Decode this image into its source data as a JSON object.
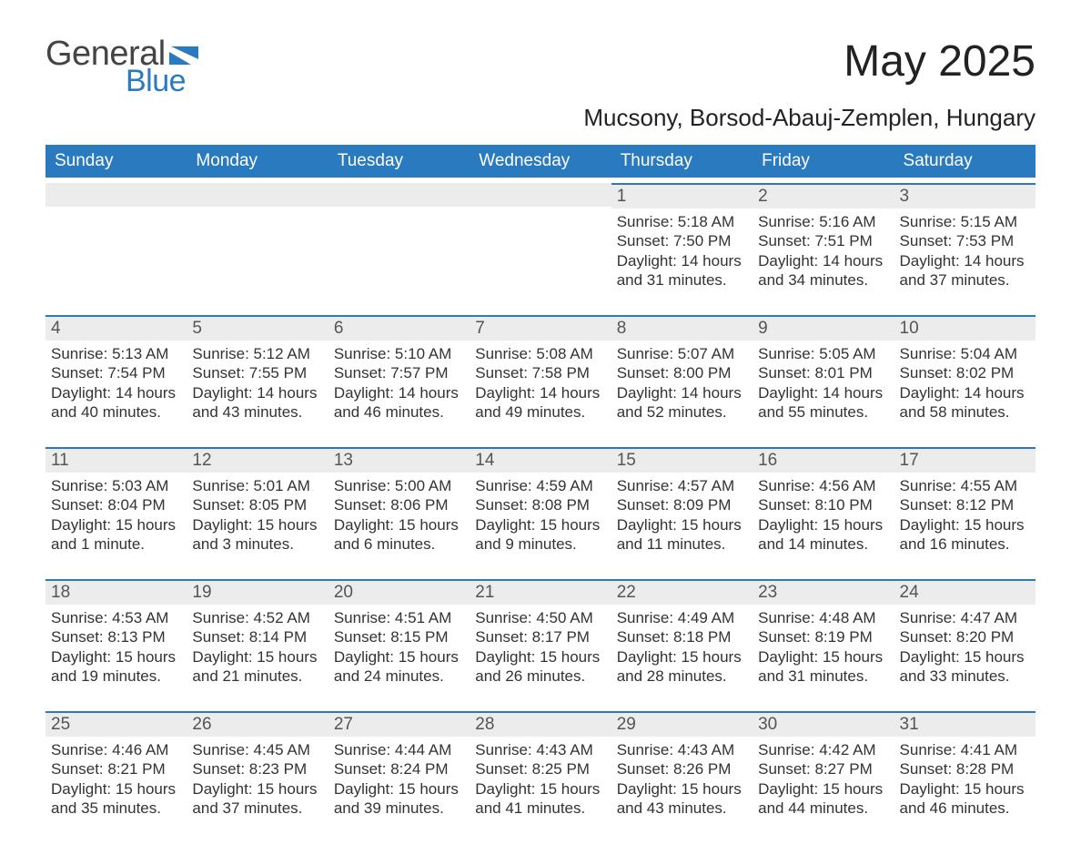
{
  "brand": {
    "text1": "General",
    "text2": "Blue",
    "color1": "#444444",
    "color2": "#2a7ac0"
  },
  "title": "May 2025",
  "location": "Mucsony, Borsod-Abauj-Zemplen, Hungary",
  "colors": {
    "header_bg": "#2a7ac0",
    "header_text": "#ffffff",
    "daybar_bg": "#ececec",
    "daybar_border": "#2a7ac0",
    "body_text": "#333333",
    "page_bg": "#ffffff"
  },
  "layout": {
    "weekday_fontsize": 19,
    "daynum_fontsize": 19,
    "body_fontsize": 17,
    "title_fontsize": 48,
    "location_fontsize": 26
  },
  "weekdays": [
    "Sunday",
    "Monday",
    "Tuesday",
    "Wednesday",
    "Thursday",
    "Friday",
    "Saturday"
  ],
  "weeks": [
    [
      null,
      null,
      null,
      null,
      {
        "n": "1",
        "sr": "5:18 AM",
        "ss": "7:50 PM",
        "dl": "14 hours and 31 minutes."
      },
      {
        "n": "2",
        "sr": "5:16 AM",
        "ss": "7:51 PM",
        "dl": "14 hours and 34 minutes."
      },
      {
        "n": "3",
        "sr": "5:15 AM",
        "ss": "7:53 PM",
        "dl": "14 hours and 37 minutes."
      }
    ],
    [
      {
        "n": "4",
        "sr": "5:13 AM",
        "ss": "7:54 PM",
        "dl": "14 hours and 40 minutes."
      },
      {
        "n": "5",
        "sr": "5:12 AM",
        "ss": "7:55 PM",
        "dl": "14 hours and 43 minutes."
      },
      {
        "n": "6",
        "sr": "5:10 AM",
        "ss": "7:57 PM",
        "dl": "14 hours and 46 minutes."
      },
      {
        "n": "7",
        "sr": "5:08 AM",
        "ss": "7:58 PM",
        "dl": "14 hours and 49 minutes."
      },
      {
        "n": "8",
        "sr": "5:07 AM",
        "ss": "8:00 PM",
        "dl": "14 hours and 52 minutes."
      },
      {
        "n": "9",
        "sr": "5:05 AM",
        "ss": "8:01 PM",
        "dl": "14 hours and 55 minutes."
      },
      {
        "n": "10",
        "sr": "5:04 AM",
        "ss": "8:02 PM",
        "dl": "14 hours and 58 minutes."
      }
    ],
    [
      {
        "n": "11",
        "sr": "5:03 AM",
        "ss": "8:04 PM",
        "dl": "15 hours and 1 minute."
      },
      {
        "n": "12",
        "sr": "5:01 AM",
        "ss": "8:05 PM",
        "dl": "15 hours and 3 minutes."
      },
      {
        "n": "13",
        "sr": "5:00 AM",
        "ss": "8:06 PM",
        "dl": "15 hours and 6 minutes."
      },
      {
        "n": "14",
        "sr": "4:59 AM",
        "ss": "8:08 PM",
        "dl": "15 hours and 9 minutes."
      },
      {
        "n": "15",
        "sr": "4:57 AM",
        "ss": "8:09 PM",
        "dl": "15 hours and 11 minutes."
      },
      {
        "n": "16",
        "sr": "4:56 AM",
        "ss": "8:10 PM",
        "dl": "15 hours and 14 minutes."
      },
      {
        "n": "17",
        "sr": "4:55 AM",
        "ss": "8:12 PM",
        "dl": "15 hours and 16 minutes."
      }
    ],
    [
      {
        "n": "18",
        "sr": "4:53 AM",
        "ss": "8:13 PM",
        "dl": "15 hours and 19 minutes."
      },
      {
        "n": "19",
        "sr": "4:52 AM",
        "ss": "8:14 PM",
        "dl": "15 hours and 21 minutes."
      },
      {
        "n": "20",
        "sr": "4:51 AM",
        "ss": "8:15 PM",
        "dl": "15 hours and 24 minutes."
      },
      {
        "n": "21",
        "sr": "4:50 AM",
        "ss": "8:17 PM",
        "dl": "15 hours and 26 minutes."
      },
      {
        "n": "22",
        "sr": "4:49 AM",
        "ss": "8:18 PM",
        "dl": "15 hours and 28 minutes."
      },
      {
        "n": "23",
        "sr": "4:48 AM",
        "ss": "8:19 PM",
        "dl": "15 hours and 31 minutes."
      },
      {
        "n": "24",
        "sr": "4:47 AM",
        "ss": "8:20 PM",
        "dl": "15 hours and 33 minutes."
      }
    ],
    [
      {
        "n": "25",
        "sr": "4:46 AM",
        "ss": "8:21 PM",
        "dl": "15 hours and 35 minutes."
      },
      {
        "n": "26",
        "sr": "4:45 AM",
        "ss": "8:23 PM",
        "dl": "15 hours and 37 minutes."
      },
      {
        "n": "27",
        "sr": "4:44 AM",
        "ss": "8:24 PM",
        "dl": "15 hours and 39 minutes."
      },
      {
        "n": "28",
        "sr": "4:43 AM",
        "ss": "8:25 PM",
        "dl": "15 hours and 41 minutes."
      },
      {
        "n": "29",
        "sr": "4:43 AM",
        "ss": "8:26 PM",
        "dl": "15 hours and 43 minutes."
      },
      {
        "n": "30",
        "sr": "4:42 AM",
        "ss": "8:27 PM",
        "dl": "15 hours and 44 minutes."
      },
      {
        "n": "31",
        "sr": "4:41 AM",
        "ss": "8:28 PM",
        "dl": "15 hours and 46 minutes."
      }
    ]
  ],
  "labels": {
    "sunrise": "Sunrise: ",
    "sunset": "Sunset: ",
    "daylight": "Daylight: "
  }
}
